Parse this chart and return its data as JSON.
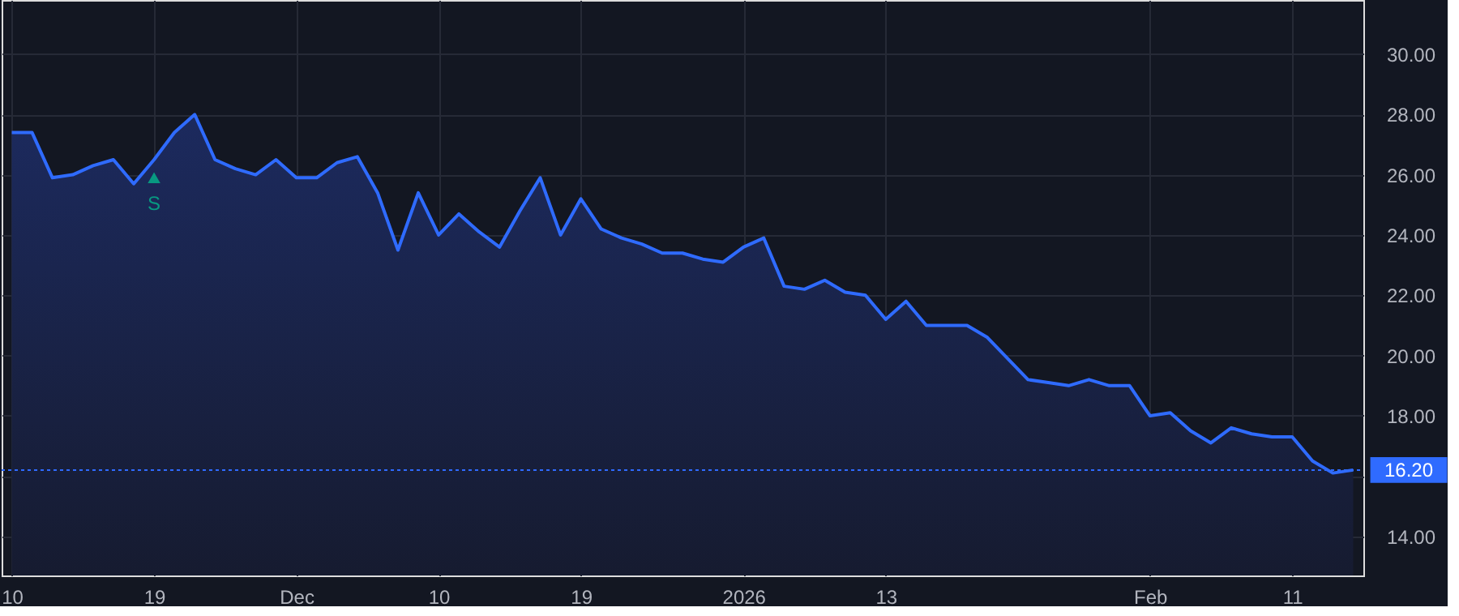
{
  "chart_data": {
    "type": "area",
    "categories": [
      "10",
      null,
      null,
      null,
      null,
      null,
      null,
      "19",
      null,
      null,
      null,
      null,
      null,
      null,
      "Dec",
      null,
      null,
      null,
      null,
      null,
      null,
      "10",
      null,
      null,
      null,
      null,
      null,
      null,
      "19",
      null,
      null,
      null,
      null,
      null,
      null,
      null,
      "2026",
      null,
      null,
      null,
      null,
      null,
      null,
      "13",
      null,
      null,
      null,
      null,
      null,
      null,
      null,
      null,
      null,
      null,
      null,
      null,
      "Feb",
      null,
      null,
      null,
      null,
      null,
      null,
      "11",
      null,
      null,
      null
    ],
    "series": [
      {
        "color": "#2f6bff",
        "values": [
          27.4,
          27.4,
          25.9,
          26.0,
          26.3,
          26.5,
          25.7,
          26.5,
          27.4,
          28.0,
          26.5,
          26.2,
          26.0,
          26.5,
          25.9,
          25.9,
          26.4,
          26.6,
          25.4,
          23.5,
          25.4,
          24.0,
          24.7,
          24.1,
          23.6,
          24.8,
          25.9,
          24.0,
          25.2,
          24.2,
          23.9,
          23.7,
          23.4,
          23.4,
          23.2,
          23.1,
          23.6,
          23.9,
          22.3,
          22.2,
          22.5,
          22.1,
          22.0,
          21.2,
          21.8,
          21.0,
          21.0,
          21.0,
          20.6,
          19.9,
          19.2,
          19.1,
          19.0,
          19.2,
          19.0,
          19.0,
          18.0,
          18.1,
          17.5,
          17.1,
          17.6,
          17.4,
          17.3,
          17.3,
          16.5,
          16.1,
          16.2
        ]
      }
    ],
    "ylim": [
      12.7,
      31.8
    ],
    "yticks": [
      {
        "value": 14,
        "label": "14.00"
      },
      {
        "value": 16,
        "label": null
      },
      {
        "value": 18,
        "label": "18.00"
      },
      {
        "value": 20,
        "label": "20.00"
      },
      {
        "value": 22,
        "label": "22.00"
      },
      {
        "value": 24,
        "label": "24.00"
      },
      {
        "value": 26,
        "label": "26.00"
      },
      {
        "value": 28,
        "label": "28.00"
      },
      {
        "value": 30,
        "label": "30.00"
      }
    ],
    "grid": true,
    "ref_lines": [
      {
        "axis": "y",
        "value": 16.2,
        "label": "16.20",
        "color": "#2f6bff",
        "line_style": "dotted"
      }
    ],
    "annotations": [
      {
        "text": "S",
        "x": "19",
        "y": 25.9
      }
    ]
  }
}
